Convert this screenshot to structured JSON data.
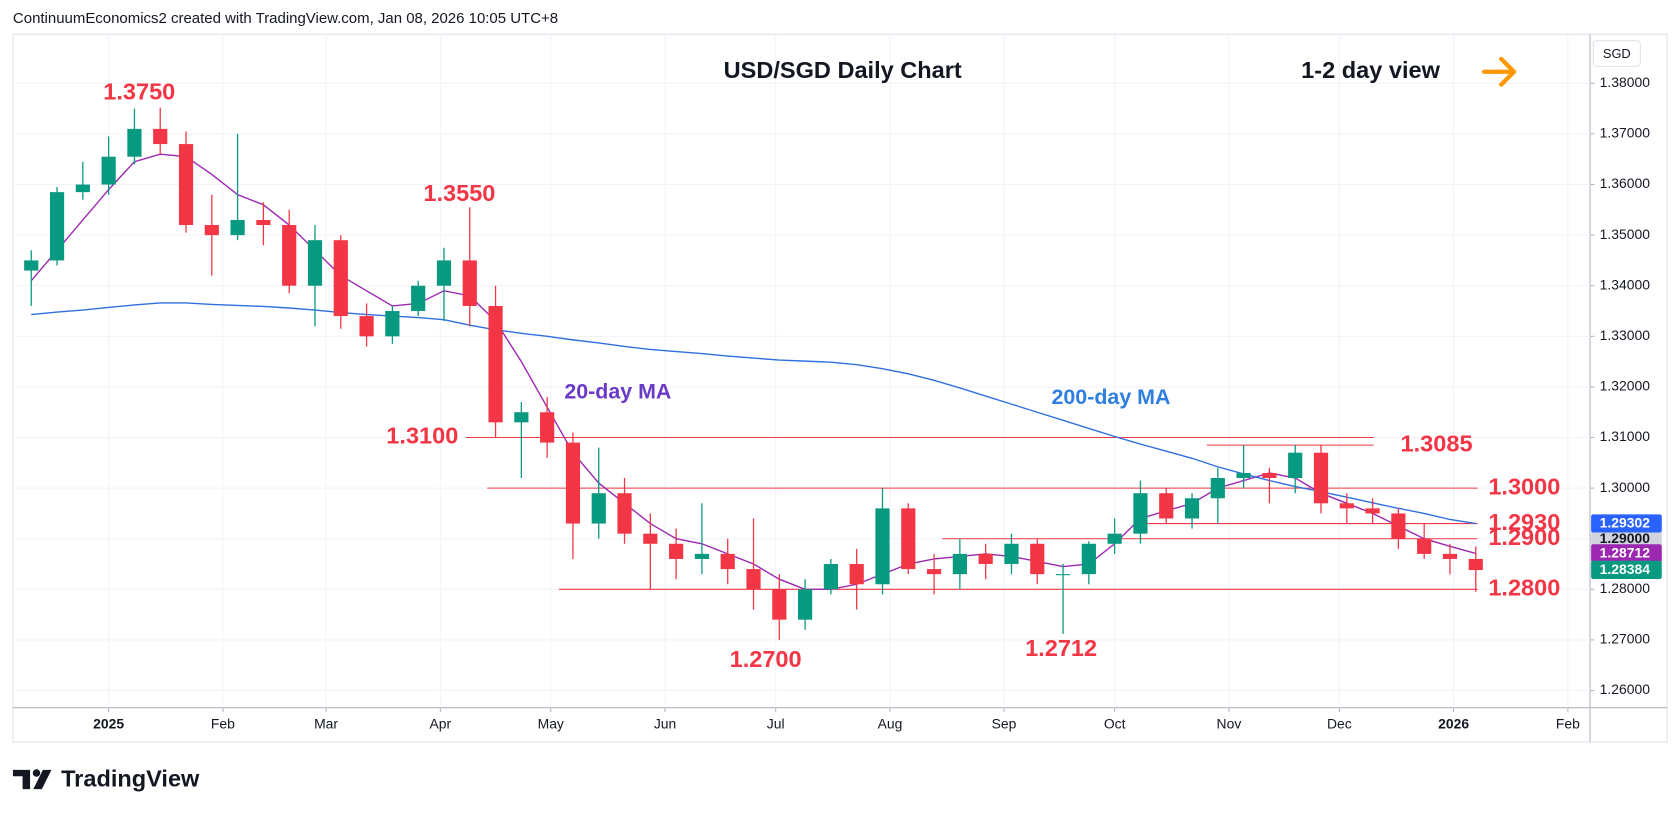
{
  "header": "ContinuumEconomics2 created with TradingView.com, Jan 08, 2026 10:05 UTC+8",
  "logo": "TradingView",
  "chart_data": {
    "type": "candlestick",
    "title": "USD/SGD Daily Chart",
    "subtitle": "1-2 day view",
    "currency": "SGD",
    "categories": [
      null,
      null,
      null,
      null,
      null,
      null,
      null,
      null,
      null,
      null,
      null,
      null,
      null,
      null,
      null,
      null,
      null,
      null,
      null,
      null,
      null,
      null,
      null,
      null,
      null,
      null,
      null,
      null,
      null,
      null,
      null,
      null,
      null,
      null,
      null,
      null,
      null,
      null,
      null,
      null,
      null,
      null,
      null,
      null,
      null,
      null,
      null,
      null,
      null,
      null,
      null,
      null,
      null,
      null,
      null,
      null,
      null
    ],
    "open": [
      1.343,
      1.345,
      1.3585,
      1.36,
      1.3655,
      1.371,
      1.368,
      1.352,
      1.35,
      1.353,
      1.352,
      1.34,
      1.349,
      1.334,
      1.33,
      1.335,
      1.34,
      1.345,
      1.336,
      1.313,
      1.315,
      1.309,
      1.293,
      1.299,
      1.291,
      1.289,
      1.286,
      1.287,
      1.284,
      1.28,
      1.274,
      1.28,
      1.285,
      1.281,
      1.296,
      1.284,
      1.283,
      1.287,
      1.285,
      1.289,
      1.283,
      1.283,
      1.289,
      1.291,
      1.299,
      1.294,
      1.298,
      1.302,
      1.303,
      1.302,
      1.307,
      1.297,
      1.296,
      1.295,
      1.29,
      1.287,
      1.286
    ],
    "high": [
      1.347,
      1.3595,
      1.3645,
      1.3695,
      1.375,
      1.3752,
      1.3705,
      1.358,
      1.37,
      1.3565,
      1.355,
      1.352,
      1.35,
      1.3365,
      1.336,
      1.341,
      1.3475,
      1.3555,
      1.34,
      1.317,
      1.318,
      1.311,
      1.308,
      1.302,
      1.295,
      1.292,
      1.297,
      1.29,
      1.294,
      1.283,
      1.282,
      1.286,
      1.288,
      1.3,
      1.297,
      1.287,
      1.29,
      1.289,
      1.291,
      1.29,
      1.285,
      1.2895,
      1.294,
      1.3015,
      1.3,
      1.299,
      1.304,
      1.3085,
      1.304,
      1.3085,
      1.3085,
      1.299,
      1.298,
      1.296,
      1.293,
      1.289,
      1.2885
    ],
    "low": [
      1.336,
      1.344,
      1.357,
      1.358,
      1.364,
      1.366,
      1.3505,
      1.342,
      1.349,
      1.348,
      1.3385,
      1.332,
      1.3315,
      1.328,
      1.3285,
      1.334,
      1.333,
      1.332,
      1.31,
      1.302,
      1.306,
      1.286,
      1.29,
      1.289,
      1.28,
      1.282,
      1.283,
      1.281,
      1.276,
      1.27,
      1.272,
      1.279,
      1.276,
      1.279,
      1.283,
      1.279,
      1.28,
      1.282,
      1.283,
      1.281,
      1.2712,
      1.281,
      1.287,
      1.289,
      1.293,
      1.292,
      1.293,
      1.3,
      1.297,
      1.299,
      1.295,
      1.293,
      1.293,
      1.288,
      1.286,
      1.283,
      1.2795
    ],
    "close": [
      1.345,
      1.3585,
      1.36,
      1.3655,
      1.371,
      1.368,
      1.352,
      1.35,
      1.353,
      1.352,
      1.34,
      1.349,
      1.334,
      1.33,
      1.335,
      1.34,
      1.345,
      1.336,
      1.313,
      1.315,
      1.309,
      1.293,
      1.299,
      1.291,
      1.289,
      1.286,
      1.287,
      1.284,
      1.28,
      1.274,
      1.28,
      1.285,
      1.281,
      1.296,
      1.284,
      1.283,
      1.287,
      1.285,
      1.289,
      1.283,
      1.283,
      1.289,
      1.291,
      1.299,
      1.294,
      1.298,
      1.302,
      1.303,
      1.302,
      1.307,
      1.297,
      1.296,
      1.295,
      1.29,
      1.287,
      1.286,
      1.2838
    ],
    "up_color": "#089981",
    "down_color": "#f23645",
    "lines": [
      {
        "name": "20-day MA",
        "color": "#9c27b0",
        "label_color": "#6a3bc8",
        "values": [
          1.341,
          1.347,
          1.353,
          1.359,
          1.3645,
          1.366,
          1.3655,
          1.362,
          1.358,
          1.356,
          1.352,
          1.347,
          1.342,
          1.339,
          1.336,
          1.3365,
          1.339,
          1.338,
          1.333,
          1.325,
          1.316,
          1.307,
          1.301,
          1.297,
          1.293,
          1.29,
          1.289,
          1.287,
          1.285,
          1.282,
          1.28,
          1.28,
          1.281,
          1.283,
          1.285,
          1.286,
          1.2865,
          1.287,
          1.2865,
          1.2855,
          1.2845,
          1.285,
          1.289,
          1.294,
          1.2955,
          1.297,
          1.3,
          1.3015,
          1.303,
          1.302,
          1.299,
          1.297,
          1.295,
          1.2925,
          1.29,
          1.2885,
          1.2871
        ]
      },
      {
        "name": "200-day MA",
        "color": "#2f6fe0",
        "label_color": "#2f7fe0",
        "values": [
          1.3343,
          1.3348,
          1.3352,
          1.3357,
          1.3362,
          1.3366,
          1.3366,
          1.3363,
          1.3361,
          1.3359,
          1.3356,
          1.3352,
          1.3347,
          1.3343,
          1.334,
          1.3337,
          1.3333,
          1.3322,
          1.3313,
          1.3306,
          1.33,
          1.3293,
          1.3287,
          1.328,
          1.3274,
          1.327,
          1.3266,
          1.3261,
          1.3257,
          1.3253,
          1.3251,
          1.3249,
          1.3244,
          1.3236,
          1.3226,
          1.3213,
          1.3198,
          1.3182,
          1.3166,
          1.315,
          1.3134,
          1.3118,
          1.3102,
          1.3087,
          1.3073,
          1.3059,
          1.3042,
          1.3028,
          1.3015,
          1.3003,
          1.2993,
          1.2982,
          1.2971,
          1.296,
          1.295,
          1.2938,
          1.293
        ]
      }
    ],
    "xlim": [
      -0.71,
      60.43
    ],
    "xticks": [
      {
        "value": 3,
        "label": "2025"
      },
      {
        "value": 7.43,
        "label": "Feb"
      },
      {
        "value": 11.43,
        "label": "Mar"
      },
      {
        "value": 15.86,
        "label": "Apr"
      },
      {
        "value": 20.14,
        "label": "May"
      },
      {
        "value": 24.57,
        "label": "Jun"
      },
      {
        "value": 28.86,
        "label": "Jul"
      },
      {
        "value": 33.29,
        "label": "Aug"
      },
      {
        "value": 37.71,
        "label": "Sep"
      },
      {
        "value": 42,
        "label": "Oct"
      },
      {
        "value": 46.43,
        "label": "Nov"
      },
      {
        "value": 50.71,
        "label": "Dec"
      },
      {
        "value": 55.14,
        "label": "2026"
      },
      {
        "value": 59.57,
        "label": "Feb"
      }
    ],
    "ylim": [
      1.2566,
      1.3897
    ],
    "yticks": [
      {
        "value": 1.26,
        "label": "1.26000"
      },
      {
        "value": 1.27,
        "label": "1.27000"
      },
      {
        "value": 1.28,
        "label": "1.28000"
      },
      {
        "value": 1.29,
        "label": "1.29000"
      },
      {
        "value": 1.3,
        "label": "1.30000"
      },
      {
        "value": 1.31,
        "label": "1.31000"
      },
      {
        "value": 1.32,
        "label": "1.32000"
      },
      {
        "value": 1.33,
        "label": "1.33000"
      },
      {
        "value": 1.34,
        "label": "1.34000"
      },
      {
        "value": 1.35,
        "label": "1.35000"
      },
      {
        "value": 1.36,
        "label": "1.36000"
      },
      {
        "value": 1.37,
        "label": "1.37000"
      },
      {
        "value": 1.38,
        "label": "1.38000"
      }
    ],
    "grid": true,
    "levels": [
      {
        "value": 1.31,
        "label": "1.3100"
      },
      {
        "value": 1.3085,
        "label": "1.3085"
      },
      {
        "value": 1.3,
        "label": "1.3000"
      },
      {
        "value": 1.293,
        "label": "1.2930"
      },
      {
        "value": 1.29,
        "label": "1.2900"
      },
      {
        "value": 1.28,
        "label": "1.2800"
      }
    ],
    "level_color": "#f23645",
    "annotations": [
      {
        "value": 1.375,
        "label": "1.3750"
      },
      {
        "value": 1.355,
        "label": "1.3550"
      },
      {
        "value": 1.27,
        "label": "1.2700"
      },
      {
        "value": 1.2712,
        "label": "1.2712"
      }
    ],
    "price_labels": [
      {
        "value": 1.29,
        "label": "1.29000",
        "color": "#d1d4dc"
      },
      {
        "value": 1.29302,
        "label": "1.29302",
        "color": "#2962ff"
      },
      {
        "value": 1.28712,
        "label": "1.28712",
        "color": "#9c27b0"
      },
      {
        "value": 1.28384,
        "label": "1.28384",
        "color": "#089981"
      }
    ]
  }
}
